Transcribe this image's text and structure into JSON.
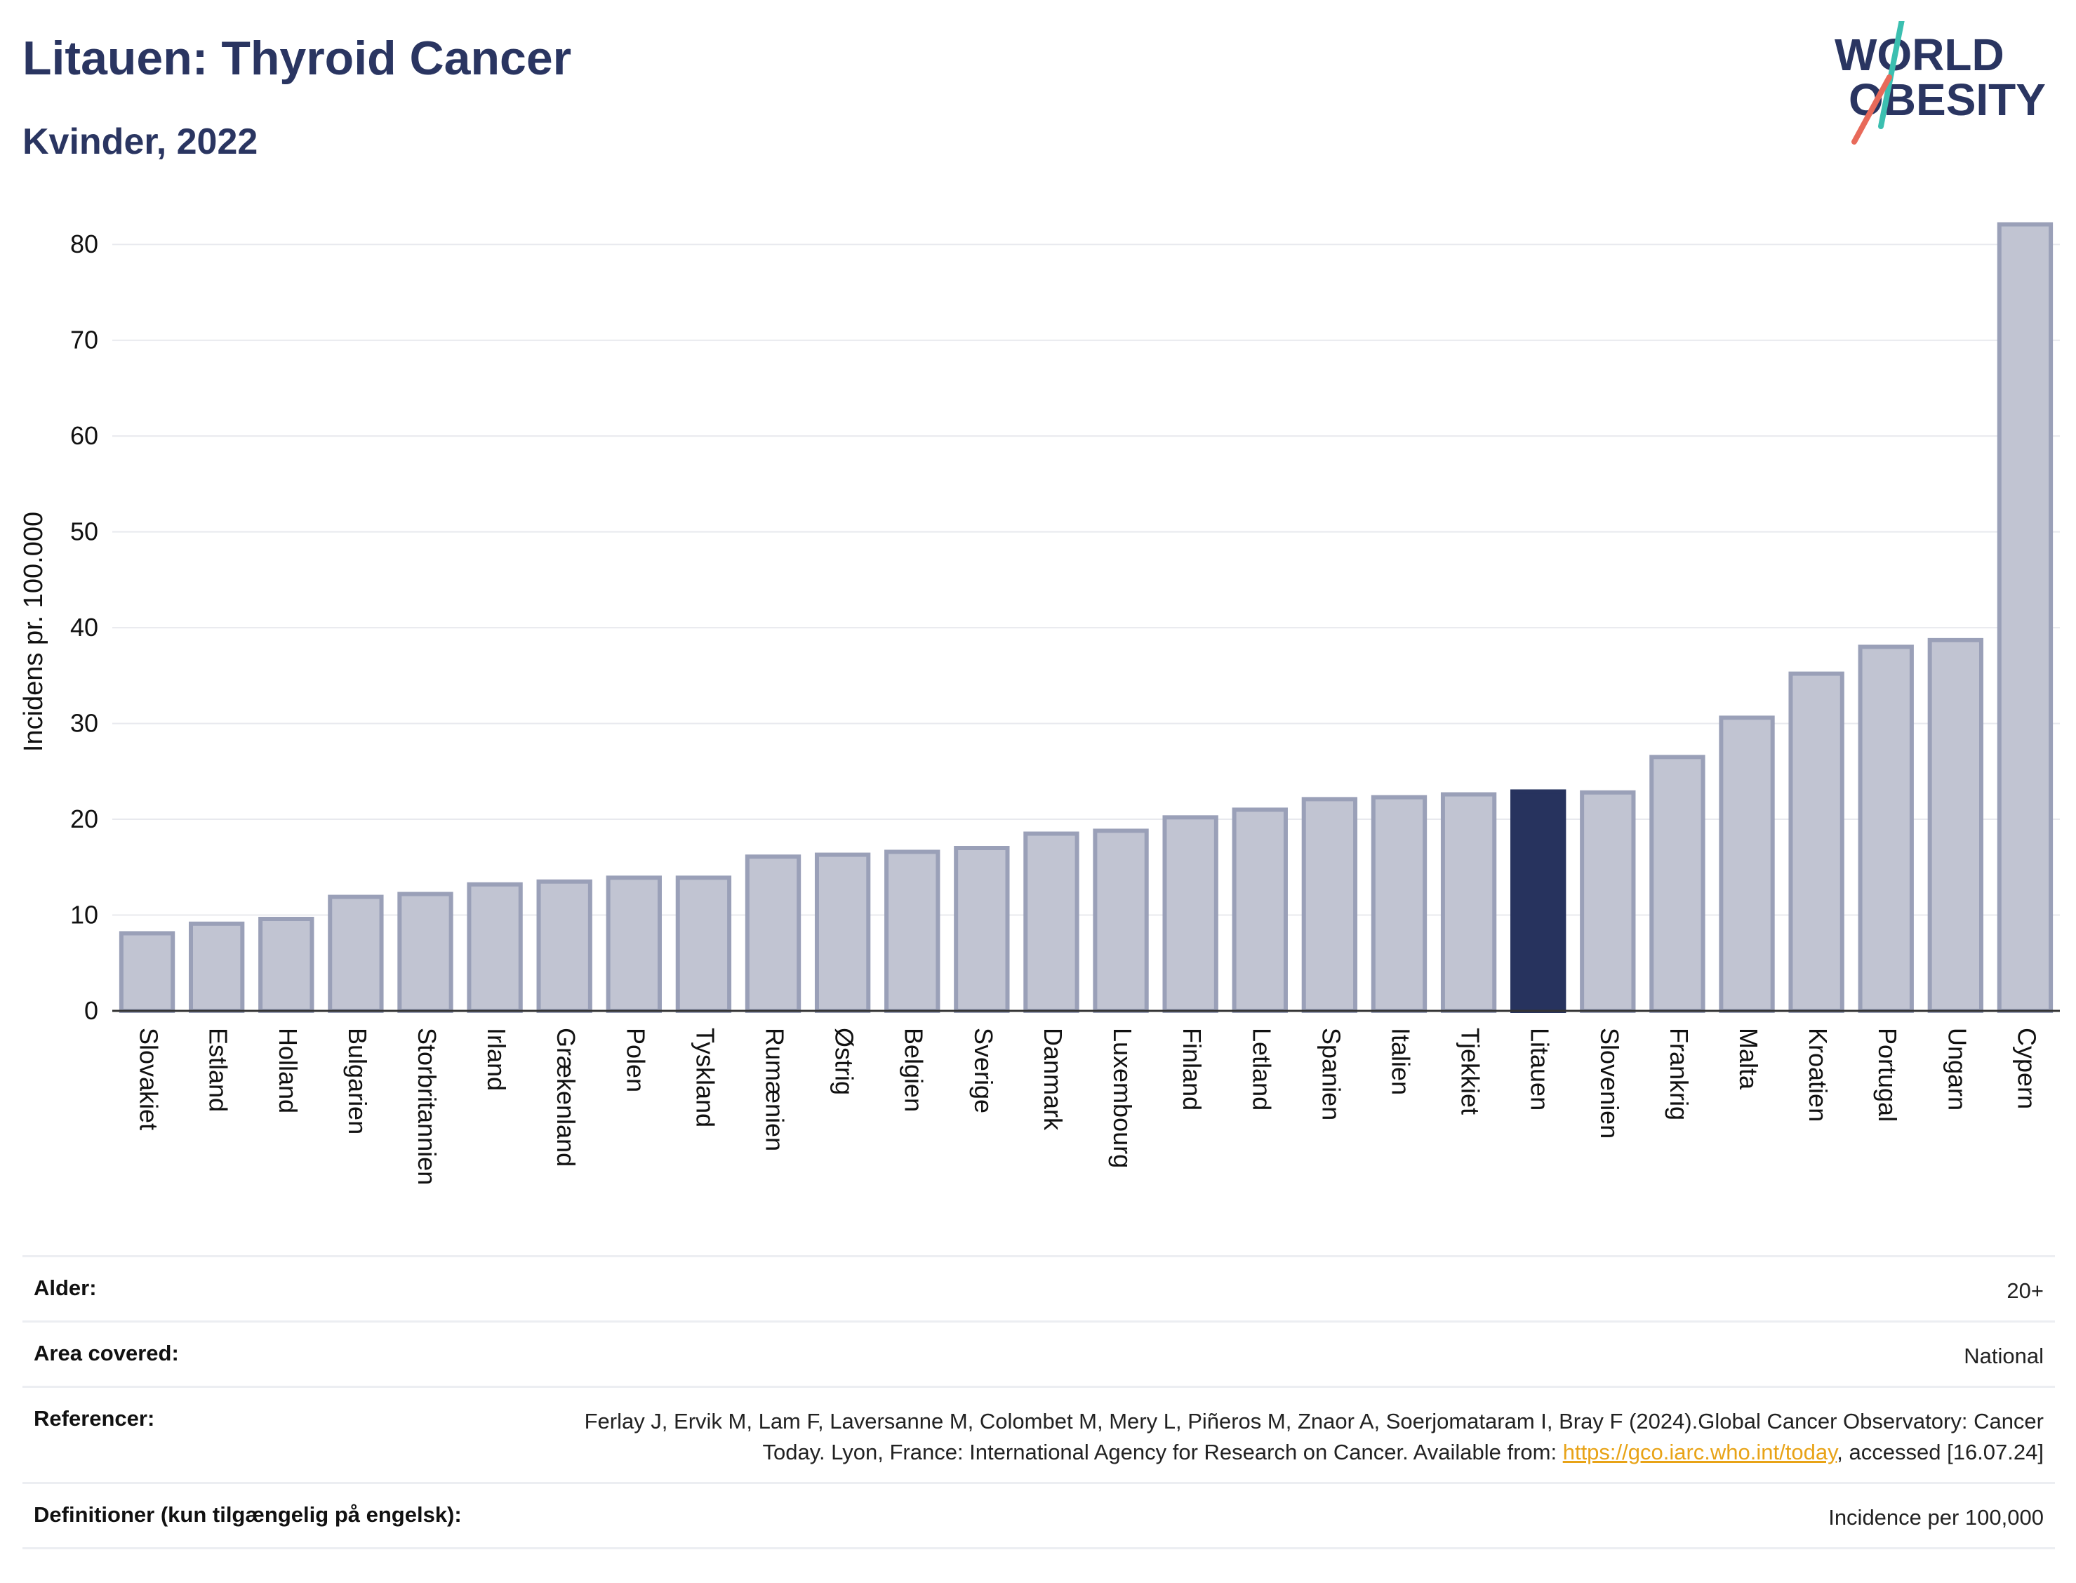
{
  "header": {
    "title": "Litauen: Thyroid Cancer",
    "subtitle": "Kvinder, 2022"
  },
  "logo": {
    "line1": "WORLD",
    "line2": "OBESITY"
  },
  "colors": {
    "highlight": "#27335e",
    "bar": "#c1c4d2",
    "bar_stroke": "#9aa0b8",
    "title": "#2a3561",
    "link": "#e8a317"
  },
  "chart_data": {
    "type": "bar",
    "ylabel": "Incidens pr. 100.000",
    "ylim": [
      0,
      85
    ],
    "yticks": [
      0,
      10,
      20,
      30,
      40,
      50,
      60,
      70,
      80
    ],
    "grid": true,
    "highlight": "Litauen",
    "categories": [
      "Slovakiet",
      "Estland",
      "Holland",
      "Bulgarien",
      "Storbritannien",
      "Irland",
      "Grækenland",
      "Polen",
      "Tyskland",
      "Rumænien",
      "Østrig",
      "Belgien",
      "Sverige",
      "Danmark",
      "Luxembourg",
      "Finland",
      "Letland",
      "Spanien",
      "Italien",
      "Tjekkiet",
      "Litauen",
      "Slovenien",
      "Frankrig",
      "Malta",
      "Kroatien",
      "Portugal",
      "Ungarn",
      "Cypern"
    ],
    "values": [
      8.1,
      9.1,
      9.6,
      11.9,
      12.2,
      13.2,
      13.5,
      13.9,
      13.9,
      16.1,
      16.3,
      16.6,
      17.0,
      18.5,
      18.8,
      20.2,
      21.0,
      22.1,
      22.3,
      22.6,
      22.9,
      22.8,
      26.5,
      30.6,
      35.2,
      38.0,
      38.7,
      82.1
    ]
  },
  "meta": {
    "age_label": "Alder:",
    "age_value": "20+",
    "area_label": "Area covered:",
    "area_value": "National",
    "ref_label": "Referencer:",
    "ref_text1": "Ferlay J, Ervik M, Lam F, Laversanne M, Colombet M, Mery L, Piñeros M, Znaor A, Soerjomataram I, Bray F (2024).Global Cancer Observatory: Cancer Today. Lyon, France: International Agency for Research on Cancer. Available from: ",
    "ref_link": "https://gco.iarc.who.int/today",
    "ref_text2": ", accessed [16.07.24]",
    "def_label": "Definitioner (kun tilgængelig på engelsk):",
    "def_value": "Incidence per 100,000"
  }
}
